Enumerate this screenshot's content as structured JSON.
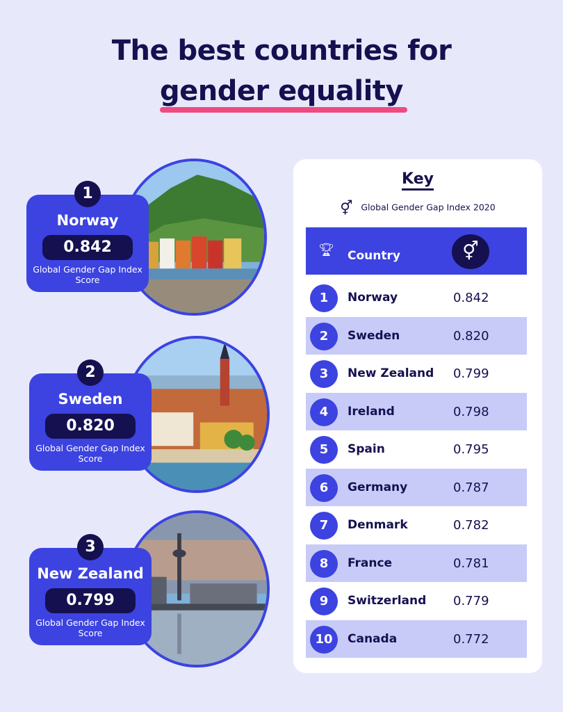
{
  "title": {
    "line1": "The best countries for",
    "line2": "gender equality"
  },
  "featured": [
    {
      "rank": "1",
      "country": "Norway",
      "score": "0.842",
      "score_label": "Global Gender Gap Index Score"
    },
    {
      "rank": "2",
      "country": "Sweden",
      "score": "0.820",
      "score_label": "Global Gender Gap Index Score"
    },
    {
      "rank": "3",
      "country": "New Zealand",
      "score": "0.799",
      "score_label": "Global Gender Gap Index Score"
    }
  ],
  "table": {
    "key_title": "Key",
    "key_legend": "Global Gender Gap Index 2020",
    "gender_icon": "gender-symbol-icon",
    "trophy_icon": "trophy-icon",
    "col_country": "Country",
    "rows": [
      {
        "rank": "1",
        "country": "Norway",
        "score": "0.842"
      },
      {
        "rank": "2",
        "country": "Sweden",
        "score": "0.820"
      },
      {
        "rank": "3",
        "country": "New Zealand",
        "score": "0.799"
      },
      {
        "rank": "4",
        "country": "Ireland",
        "score": "0.798"
      },
      {
        "rank": "5",
        "country": "Spain",
        "score": "0.795"
      },
      {
        "rank": "6",
        "country": "Germany",
        "score": "0.787"
      },
      {
        "rank": "7",
        "country": "Denmark",
        "score": "0.782"
      },
      {
        "rank": "8",
        "country": "France",
        "score": "0.781"
      },
      {
        "rank": "9",
        "country": "Switzerland",
        "score": "0.779"
      },
      {
        "rank": "10",
        "country": "Canada",
        "score": "0.772"
      }
    ]
  },
  "colors": {
    "background": "#e7e9fb",
    "accent": "#3c43e0",
    "navy": "#15104f",
    "pink": "#f04a80",
    "row_alt": "#c8cbf8"
  }
}
